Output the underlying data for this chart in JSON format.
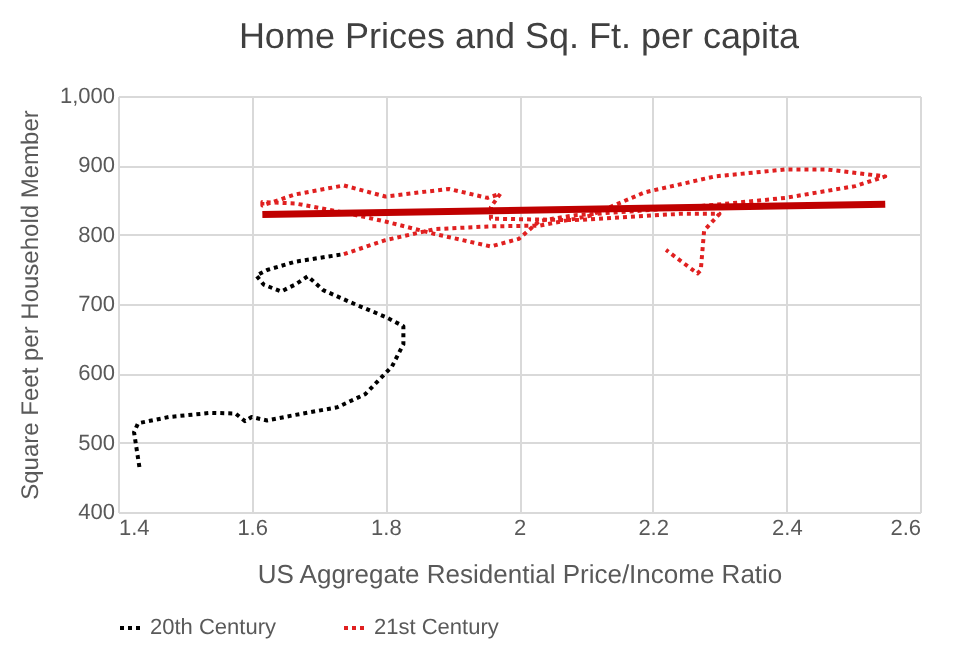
{
  "chart_data": {
    "type": "line",
    "title": "Home Prices and Sq. Ft. per capita",
    "xlabel": "US Aggregate Residential Price/Income Ratio",
    "ylabel": "Square Feet per Household Member",
    "xlim": [
      1.4,
      2.6
    ],
    "xticks": [
      1.4,
      1.6,
      1.8,
      2,
      2.2,
      2.4,
      2.6
    ],
    "ylim": [
      400,
      1000
    ],
    "yticks": [
      400,
      500,
      600,
      700,
      800,
      900,
      {
        "value": 1000,
        "label": "1,000"
      }
    ],
    "grid": true,
    "legend": "bottom",
    "series": [
      {
        "name": "20th Century",
        "color": "#000000",
        "line_style": "dotted",
        "x": [
          1.432,
          1.424,
          1.43,
          1.476,
          1.539,
          1.576,
          1.59,
          1.6,
          1.623,
          1.665,
          1.728,
          1.77,
          1.81,
          1.827,
          1.827,
          1.801,
          1.749,
          1.707,
          1.684,
          1.665,
          1.644,
          1.618,
          1.607,
          1.623,
          1.665,
          1.738
        ],
        "values": [
          465,
          515,
          528,
          537,
          543,
          542,
          531,
          537,
          532,
          540,
          551,
          570,
          610,
          642,
          668,
          681,
          702,
          720,
          740,
          728,
          718,
          728,
          741,
          749,
          761,
          772
        ]
      },
      {
        "name": "21st Century",
        "color": "#e02020",
        "line_style": "dotted",
        "x": [
          1.738,
          1.8,
          1.874,
          1.958,
          2.031,
          2.105,
          2.188,
          2.293,
          2.398,
          2.461,
          2.548,
          2.503,
          2.398,
          2.293,
          2.188,
          2.084,
          2.031,
          2.0,
          1.958,
          1.874,
          1.8,
          1.738,
          1.665,
          1.616,
          1.616,
          1.665,
          1.738,
          1.8,
          1.895,
          1.953,
          1.972,
          1.958,
          1.958,
          2.084,
          2.24,
          2.3,
          2.277,
          2.272,
          2.267,
          2.22
        ],
        "values": [
          772,
          792,
          808,
          812,
          813,
          827,
          861,
          884,
          894,
          894,
          884,
          870,
          853,
          843,
          835,
          828,
          820,
          794,
          783,
          801,
          819,
          832,
          845,
          847,
          842,
          858,
          871,
          855,
          866,
          853,
          859,
          840,
          823,
          821,
          830,
          830,
          806,
          749,
          744,
          778
        ]
      },
      {
        "type": "line",
        "color": "#c00000",
        "line_style": "solid",
        "x": [
          1.616,
          2.548
        ],
        "values": [
          829,
          844
        ]
      }
    ]
  }
}
